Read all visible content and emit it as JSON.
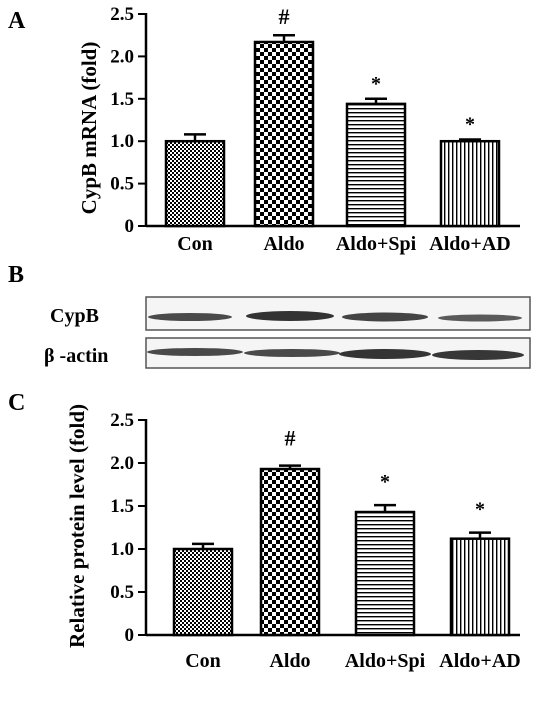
{
  "panels": {
    "a": "A",
    "b": "B",
    "c": "C"
  },
  "blot": {
    "labels": [
      "CypB",
      "β -actin"
    ]
  },
  "chart_data": [
    {
      "type": "bar",
      "panel": "A",
      "title": "",
      "xlabel": "",
      "ylabel": "CypB mRNA (fold)",
      "ylim": [
        0,
        2.5
      ],
      "yticks": [
        "0",
        "0.5",
        "1.0",
        "1.5",
        "2.0",
        "2.5"
      ],
      "categories": [
        "Con",
        "Aldo",
        "Aldo+Spi",
        "Aldo+AD"
      ],
      "values": [
        1.0,
        2.17,
        1.44,
        1.0
      ],
      "errors": [
        0.08,
        0.08,
        0.06,
        0.02
      ],
      "annotations": [
        "",
        "#",
        "*",
        "*"
      ],
      "patterns": [
        "checker-fine",
        "checker-coarse",
        "horizontal",
        "vertical"
      ],
      "grid": false,
      "legend": "none"
    },
    {
      "type": "bar",
      "panel": "C",
      "title": "",
      "xlabel": "",
      "ylabel": "Relative protein level (fold)",
      "ylim": [
        0,
        2.5
      ],
      "yticks": [
        "0",
        "0.5",
        "1.0",
        "1.5",
        "2.0",
        "2.5"
      ],
      "categories": [
        "Con",
        "Aldo",
        "Aldo+Spi",
        "Aldo+AD"
      ],
      "values": [
        1.0,
        1.93,
        1.43,
        1.12
      ],
      "errors": [
        0.06,
        0.04,
        0.08,
        0.07
      ],
      "annotations": [
        "",
        "#",
        "*",
        "*"
      ],
      "patterns": [
        "checker-fine",
        "checker-coarse",
        "horizontal",
        "vertical"
      ],
      "grid": false,
      "legend": "none"
    }
  ]
}
